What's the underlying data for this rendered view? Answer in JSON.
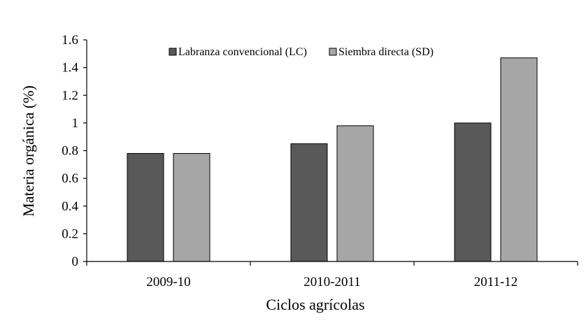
{
  "chart_data": {
    "type": "bar",
    "categories": [
      "2009-10",
      "2010-2011",
      "2011-12"
    ],
    "series": [
      {
        "name": "Labranza convencional (LC)",
        "values": [
          0.78,
          0.85,
          1.0
        ],
        "color": "#595959"
      },
      {
        "name": "Siembra directa (SD)",
        "values": [
          0.78,
          0.98,
          1.47
        ],
        "color": "#a6a6a6"
      }
    ],
    "yticks": [
      "0",
      "0.2",
      "0.4",
      "0.6",
      "0.8",
      "1",
      "1.2",
      "1.4",
      "1.6"
    ],
    "ylim": [
      0,
      1.6
    ],
    "xlabel": "Ciclos agrícolas",
    "ylabel": "Materia orgánica (%)",
    "legend_position": "top",
    "grid": false
  }
}
